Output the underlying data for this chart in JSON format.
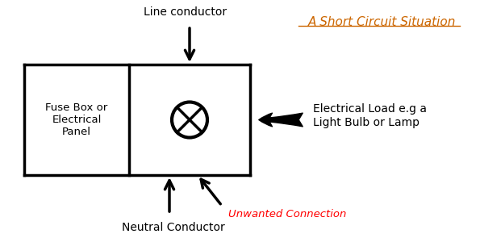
{
  "title": "A Short Circuit Situation",
  "title_color": "#CC6600",
  "bg_color": "#ffffff",
  "fuse_box_label": "Fuse Box or\nElectrical\nPanel",
  "line_conductor_label": "Line conductor",
  "neutral_conductor_label": "Neutral Conductor",
  "unwanted_connection_label": "Unwanted Connection",
  "electrical_load_label": "Electrical Load e.g a\nLight Bulb or Lamp",
  "red_color": "#FF0000",
  "black_color": "#000000",
  "orange_color": "#CC6600"
}
